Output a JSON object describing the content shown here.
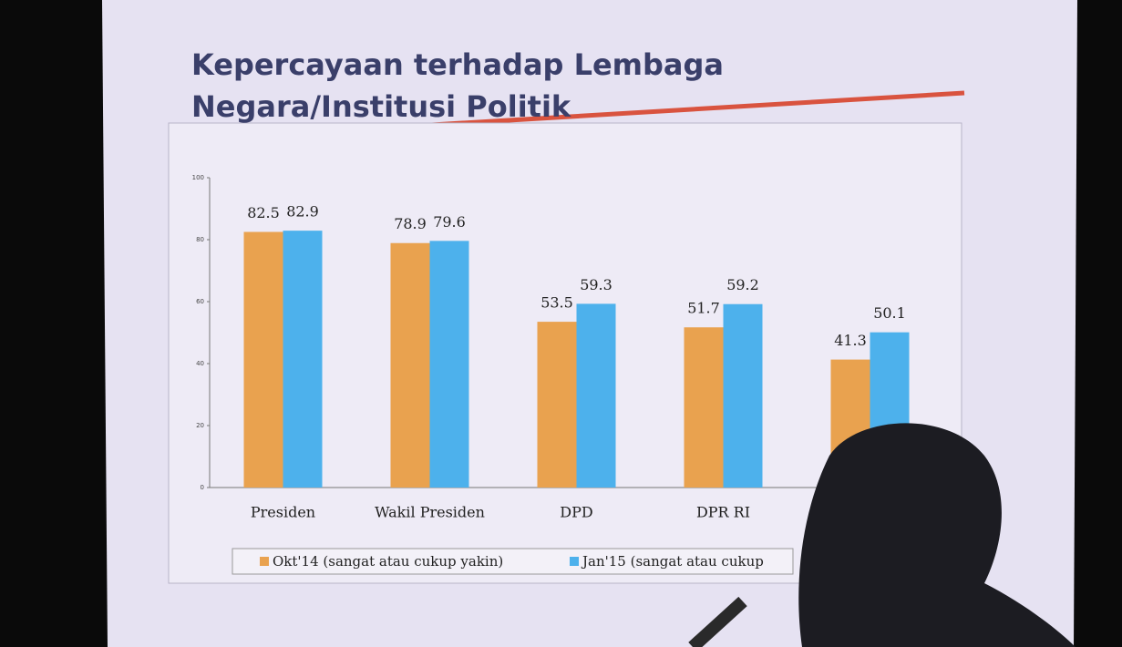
{
  "chart_data": {
    "type": "bar",
    "title": "Kepercayaan terhadap Lembaga Negara/Institusi Politik",
    "categories": [
      "Presiden",
      "Wakil Presiden",
      "DPD",
      "DPR RI",
      null
    ],
    "series": [
      {
        "name": "Okt'14 (sangat atau cukup yakin)",
        "color": "#e9a24f",
        "values": [
          82.5,
          78.9,
          53.5,
          51.7,
          41.3
        ]
      },
      {
        "name": "Jan'15 (sangat atau cukup",
        "color": "#4db1ec",
        "values": [
          82.9,
          79.6,
          59.3,
          59.2,
          50.1
        ]
      }
    ],
    "ylim": [
      0,
      100
    ],
    "yticks": [
      0,
      20,
      40,
      60,
      80,
      100
    ],
    "grid": false
  }
}
